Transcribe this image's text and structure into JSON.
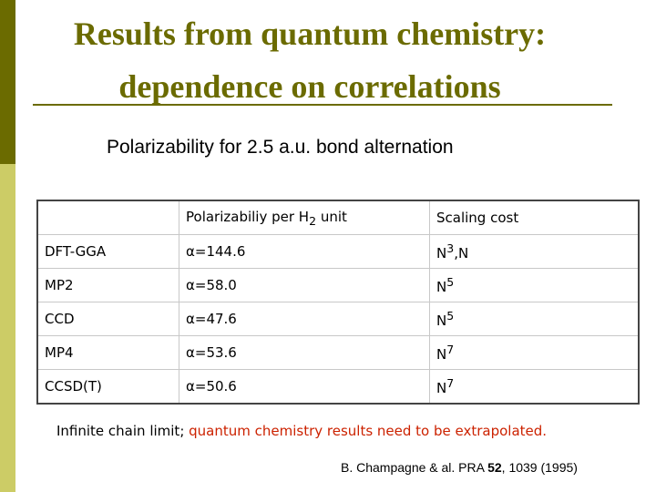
{
  "title": {
    "line1": "Results from quantum chemistry:",
    "line2": "dependence on correlations"
  },
  "subtitle": "Polarizability for  2.5 a.u. bond alternation",
  "table": {
    "headers": {
      "method": "",
      "polarizability_prefix": "Polarizabiliy per H",
      "polarizability_sub": "2",
      "polarizability_suffix": " unit",
      "scaling": "Scaling cost"
    },
    "rows": [
      {
        "method": "DFT-GGA",
        "alpha": "α=144.6",
        "scaling_base": "N",
        "scaling_exp": "3",
        "scaling_tail": ",N"
      },
      {
        "method": "MP2",
        "alpha": "α=58.0",
        "scaling_base": "N",
        "scaling_exp": "5",
        "scaling_tail": ""
      },
      {
        "method": "CCD",
        "alpha": "α=47.6",
        "scaling_base": "N",
        "scaling_exp": "5",
        "scaling_tail": ""
      },
      {
        "method": "MP4",
        "alpha": "α=53.6",
        "scaling_base": "N",
        "scaling_exp": "7",
        "scaling_tail": ""
      },
      {
        "method": "CCSD(T)",
        "alpha": "α=50.6",
        "scaling_base": "N",
        "scaling_exp": "7",
        "scaling_tail": ""
      }
    ]
  },
  "footnote": {
    "black": "Infinite chain limit; ",
    "red": "quantum chemistry results need to be extrapolated."
  },
  "citation": {
    "prefix": "B. Champagne & al. PRA ",
    "volume": "52",
    "suffix": ", 1039 (1995)"
  },
  "colors": {
    "title": "#6b6b00",
    "sidebar_dark": "#6b6b00",
    "sidebar_light": "#cccc66",
    "footnote_red": "#cc2200"
  }
}
